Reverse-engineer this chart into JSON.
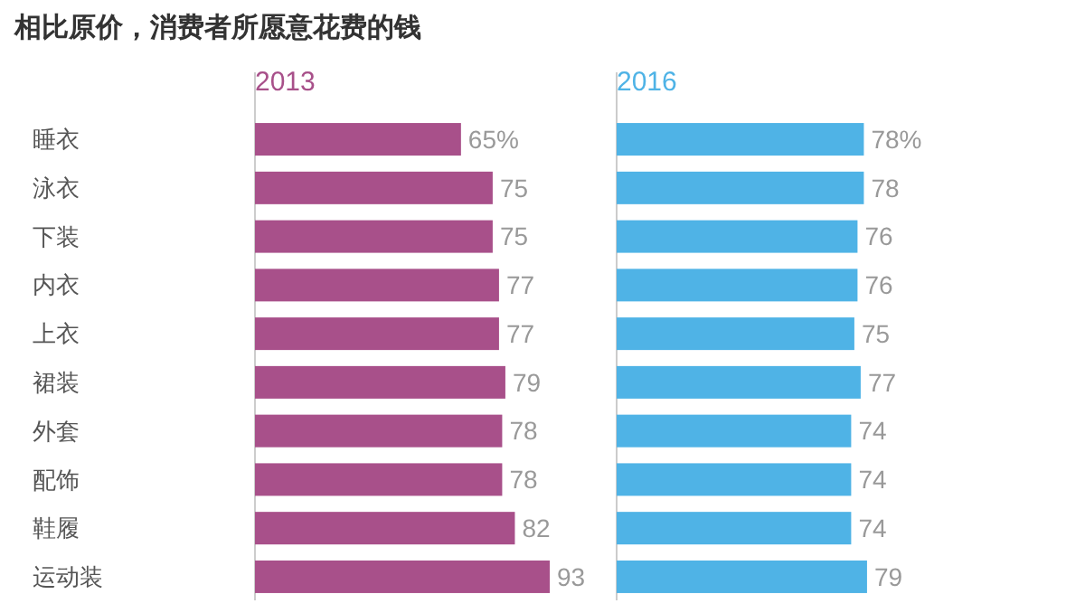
{
  "chart_data": [
    {
      "type": "bar",
      "orientation": "horizontal",
      "title": "相比原价，消费者所愿意花费的钱",
      "categories": [
        "睡衣",
        "泳衣",
        "下装",
        "内衣",
        "上衣",
        "裙装",
        "外套",
        "配饰",
        "鞋履",
        "运动装"
      ],
      "series": [
        {
          "name": "2013",
          "color": "#a8508a",
          "values": [
            65,
            75,
            75,
            77,
            77,
            79,
            78,
            78,
            82,
            93
          ],
          "value_labels": [
            "65%",
            "75",
            "75",
            "77",
            "77",
            "79",
            "78",
            "78",
            "82",
            "93"
          ]
        }
      ],
      "legend": false
    },
    {
      "type": "bar",
      "orientation": "horizontal",
      "categories": [
        null,
        null,
        null,
        null,
        null,
        null,
        null,
        null,
        null,
        null
      ],
      "series": [
        {
          "name": "2016",
          "color": "#4fb3e6",
          "values": [
            78,
            78,
            76,
            76,
            75,
            77,
            74,
            74,
            74,
            79
          ],
          "value_labels": [
            "78%",
            "78",
            "76",
            "76",
            "75",
            "77",
            "74",
            "74",
            "74",
            "79"
          ]
        }
      ],
      "legend": false
    }
  ]
}
